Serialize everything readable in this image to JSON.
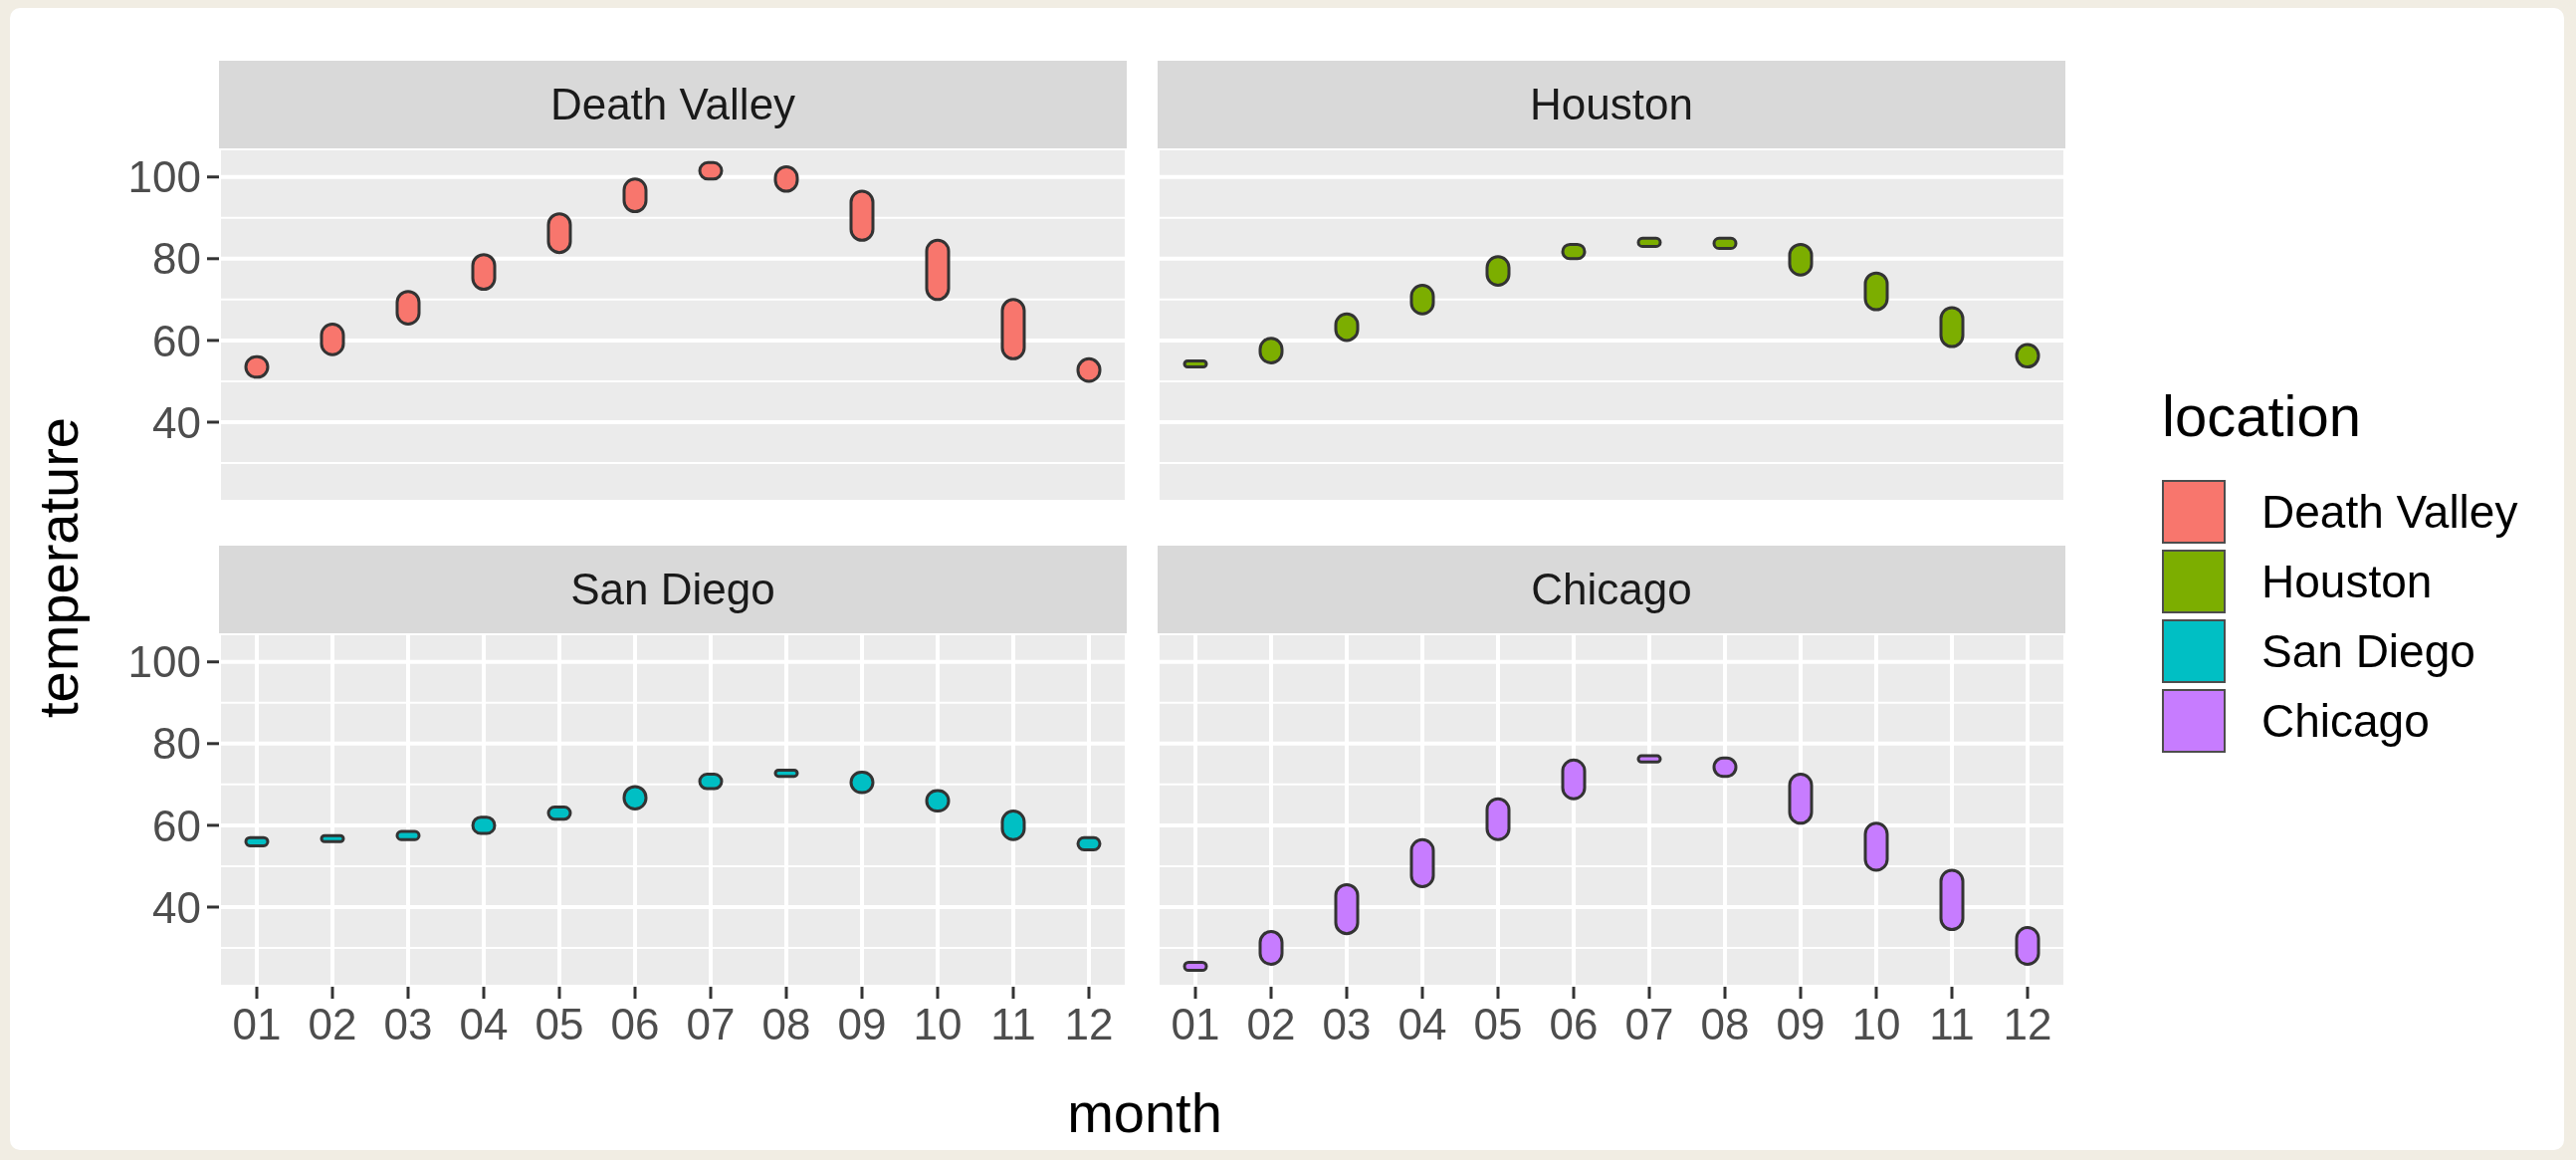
{
  "chart_data": [
    {
      "type": "bar",
      "title": "Death Valley",
      "ylabel": "temperature",
      "legend_title": "location",
      "legend": "right",
      "categories": [
        "01",
        "02",
        "03",
        "04",
        "05",
        "06",
        "07",
        "08",
        "09",
        "10",
        "11",
        "12"
      ],
      "series": [
        {
          "name": "Death Valley",
          "color": "#f8766d",
          "base": [
            51,
            56.5,
            64,
            72.5,
            81.5,
            91.5,
            99.5,
            96.5,
            84.5,
            70,
            55.5,
            50
          ],
          "values": [
            5,
            7.5,
            8,
            8.5,
            9.5,
            8,
            4,
            6,
            12,
            14.5,
            14.5,
            5.5
          ]
        }
      ],
      "ylim": [
        20.5,
        107
      ],
      "yticks": [
        40,
        60,
        80,
        100
      ],
      "grid": true,
      "tick_labels": "y"
    },
    {
      "type": "bar",
      "title": "Houston",
      "legend": "right",
      "categories": [
        "01",
        "02",
        "03",
        "04",
        "05",
        "06",
        "07",
        "08",
        "09",
        "10",
        "11",
        "12"
      ],
      "series": [
        {
          "name": "Houston",
          "color": "#7cae00",
          "base": [
            53.5,
            54.5,
            60,
            66.5,
            73.5,
            80,
            83,
            82.5,
            76,
            67.5,
            58.5,
            53.5
          ],
          "values": [
            1.5,
            6,
            6.5,
            7,
            7,
            3.5,
            2,
            2.5,
            7.5,
            9,
            9.5,
            5.5
          ]
        }
      ],
      "ylim": [
        20.5,
        107
      ],
      "yticks": [
        40,
        60,
        80,
        100
      ],
      "grid": true,
      "tick_labels": false
    },
    {
      "type": "bar",
      "title": "San Diego",
      "xlabel": "month",
      "legend": "right",
      "categories": [
        "01",
        "02",
        "03",
        "04",
        "05",
        "06",
        "07",
        "08",
        "09",
        "10",
        "11",
        "12"
      ],
      "series": [
        {
          "name": "San Diego",
          "color": "#00bfc4",
          "base": [
            55,
            56,
            56.5,
            58,
            61.5,
            64,
            69,
            72,
            68,
            63.5,
            56.5,
            54
          ],
          "values": [
            2,
            1.5,
            2,
            4,
            3,
            5.5,
            3.5,
            1.5,
            5,
            5,
            7,
            3
          ]
        }
      ],
      "ylim": [
        20.5,
        107
      ],
      "yticks": [
        40,
        60,
        80,
        100
      ],
      "grid": true
    },
    {
      "type": "bar",
      "title": "Chicago",
      "legend": "right",
      "categories": [
        "01",
        "02",
        "03",
        "04",
        "05",
        "06",
        "07",
        "08",
        "09",
        "10",
        "11",
        "12"
      ],
      "series": [
        {
          "name": "Chicago",
          "color": "#c77cff",
          "base": [
            24.5,
            26,
            33.5,
            45,
            56.5,
            66.5,
            75.5,
            72,
            60.5,
            49,
            34.5,
            26
          ],
          "values": [
            2,
            8,
            12,
            11.5,
            10,
            9.5,
            1.5,
            4.5,
            12,
            11.5,
            14.5,
            9
          ]
        }
      ],
      "ylim": [
        20.5,
        107
      ],
      "yticks": [
        40,
        60,
        80,
        100
      ],
      "grid": true,
      "tick_labels": "x"
    }
  ]
}
